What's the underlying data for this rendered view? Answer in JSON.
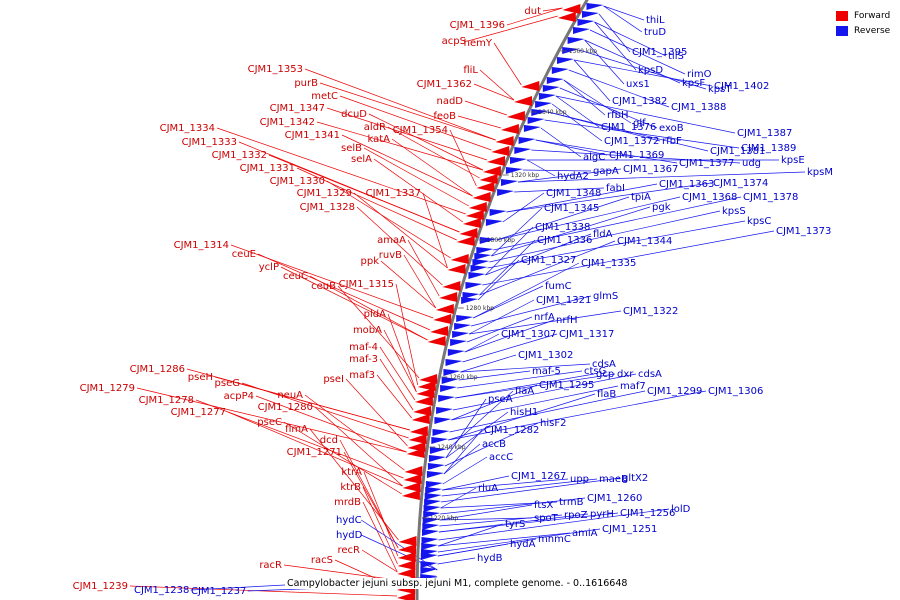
{
  "legend": {
    "forward_label": "Forward",
    "forward_color": "#ee0000",
    "reverse_label": "Reverse",
    "reverse_color": "#1515ee"
  },
  "caption": "Campylobacter jejuni subsp. jejuni M1, complete genome. - 0..1616648",
  "ticks": [
    "1360 kbp",
    "1340 kbp",
    "1320 kbp",
    "1300 kbp",
    "1280 kbp",
    "1260 kbp",
    "1240 kbp",
    "1220 kbp"
  ],
  "forward_genes": [
    "dut",
    "CJM1_1396",
    "acpS",
    "hemY",
    "fliL",
    "CJM1_1362",
    "nadD",
    "feoB",
    "CJM1_1353",
    "purB",
    "metC",
    "CJM1_1347",
    "dcuD",
    "CJM1_1342",
    "aldR",
    "CJM1_1354",
    "CJM1_1341",
    "katA",
    "selB",
    "CJM1_1334",
    "selA",
    "CJM1_1333",
    "CJM1_1332",
    "CJM1_1331",
    "CJM1_1330",
    "CJM1_1329",
    "CJM1_1337",
    "CJM1_1328",
    "amaA",
    "ruvB",
    "ppk",
    "CJM1_1314",
    "ceuE",
    "yclP",
    "ceuC",
    "ceuB",
    "CJM1_1315",
    "pldA",
    "mobA",
    "maf-4",
    "maf-3",
    "maf3",
    "CJM1_1286",
    "pseH",
    "pseG",
    "pseI",
    "CJM1_1279",
    "acpP4",
    "neuA",
    "CJM1_1278",
    "CJM1_1280",
    "CJM1_1277",
    "pseC",
    "flmA",
    "dcd",
    "CJM1_1271",
    "ktrA",
    "ktrB",
    "mrdB",
    "recR",
    "racR",
    "racS",
    "CJM1_1239"
  ],
  "reverse_genes": [
    "thiL",
    "truD",
    "CJM1_1395",
    "tilS",
    "kpsD",
    "rimO",
    "uxs1",
    "kpsF",
    "kpsT",
    "CJM1_1402",
    "CJM1_1382",
    "CJM1_1388",
    "rfbH",
    "glf",
    "exoB",
    "CJM1_1376",
    "CJM1_1387",
    "CJM1_1372",
    "rfbF",
    "CJM1_1381",
    "CJM1_1389",
    "algC",
    "CJM1_1369",
    "CJM1_1377",
    "udg",
    "kpsE",
    "hydA2",
    "gapA",
    "CJM1_1367",
    "kpsM",
    "fabI",
    "CJM1_1363",
    "CJM1_1374",
    "CJM1_1348",
    "tpiA",
    "CJM1_1368",
    "CJM1_1378",
    "CJM1_1345",
    "pgk",
    "kpsS",
    "kpsC",
    "fldA",
    "CJM1_1338",
    "CJM1_1373",
    "CJM1_1336",
    "CJM1_1344",
    "CJM1_1327",
    "CJM1_1335",
    "fumC",
    "glmS",
    "CJM1_1321",
    "CJM1_1322",
    "nrfA",
    "nrfH",
    "CJM1_1307",
    "CJM1_1317",
    "CJM1_1302",
    "cdsA",
    "maf-5",
    "ctsG",
    "gcp",
    "dxr",
    "cdsA",
    "maf7",
    "CJM1_1295",
    "CJM1_1299",
    "CJM1_1306",
    "flaB",
    "flaA",
    "pseA",
    "hisH1",
    "hisF2",
    "CJM1_1282",
    "accB",
    "accC",
    "CJM1_1267",
    "upp",
    "maeB",
    "gltX2",
    "rluA",
    "trmB",
    "CJM1_1260",
    "ftsX",
    "spoT",
    "rpoZ",
    "pyrH",
    "CJM1_1256",
    "lolD",
    "tyrS",
    "amiA",
    "CJM1_1251",
    "mnmC",
    "hydA",
    "hydB",
    "hydC",
    "hydD",
    "CJM1_1238",
    "CJM1_1237"
  ]
}
